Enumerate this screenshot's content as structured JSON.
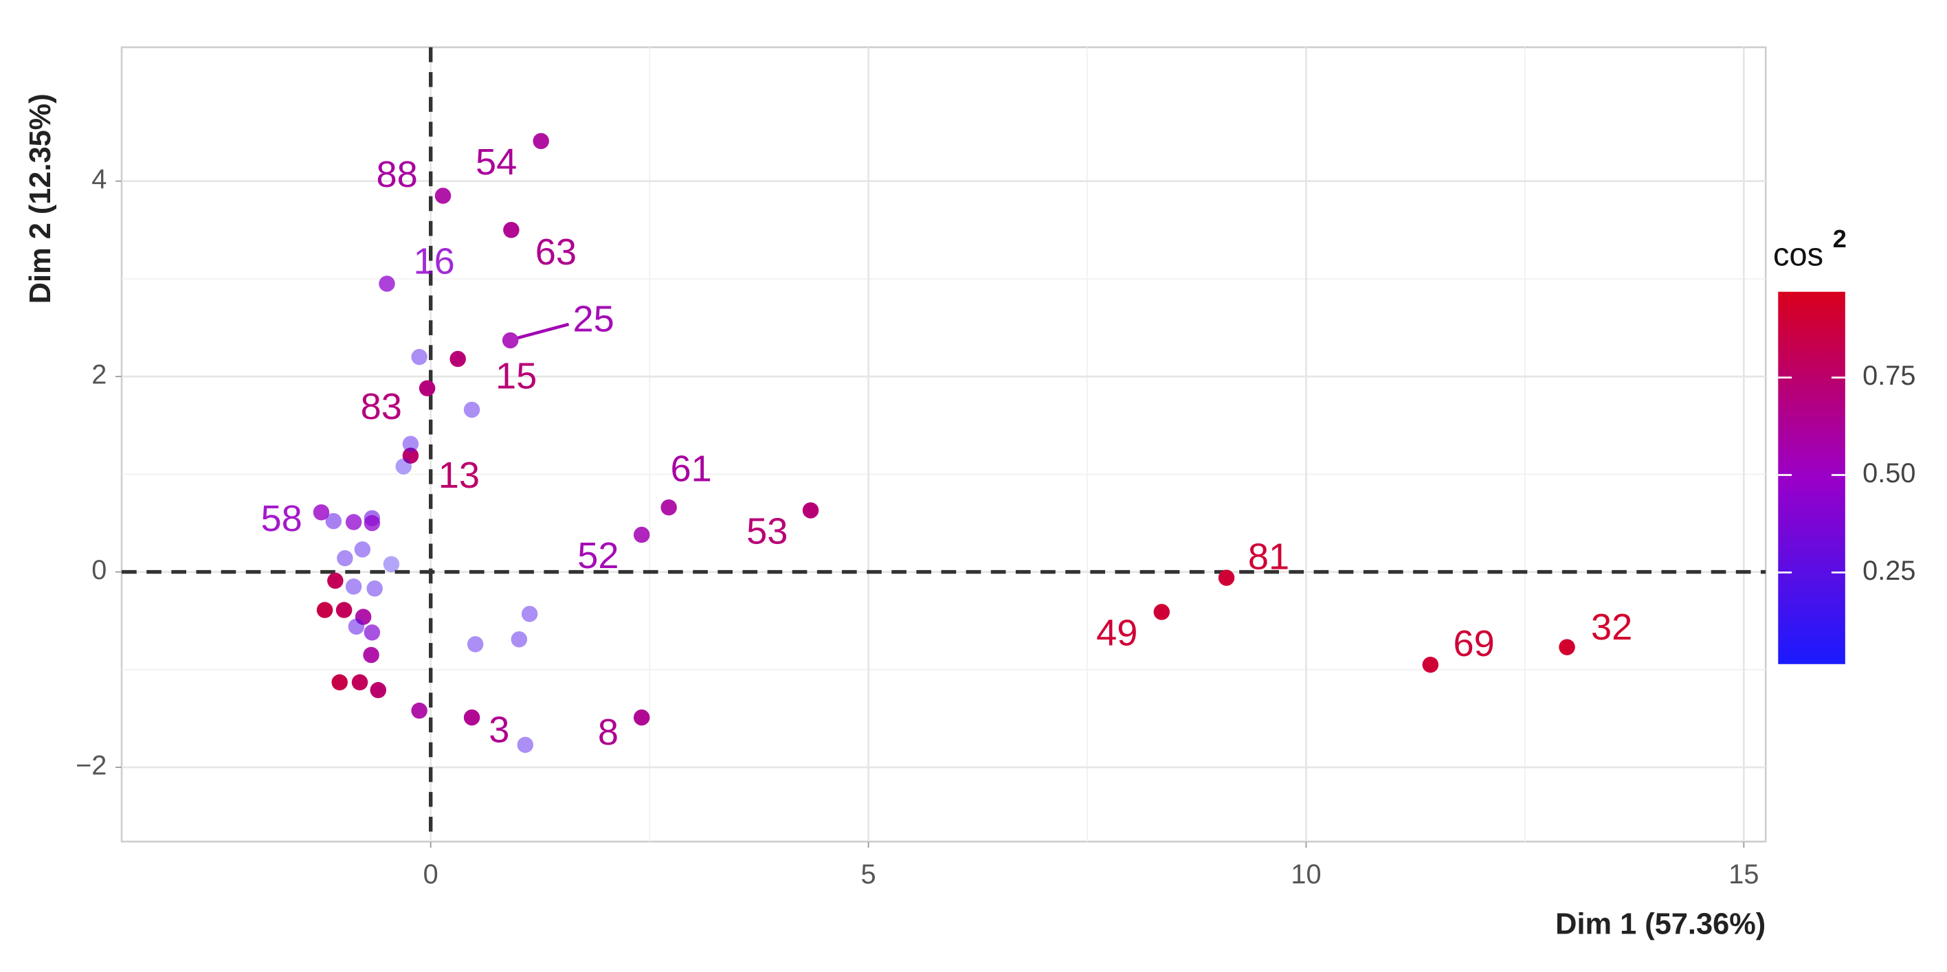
{
  "chart_data": {
    "type": "scatter",
    "x_label": "Dim 1 (57.36%)",
    "y_label": "Dim 2 (12.35%)",
    "xlim": [
      -3.53,
      15.25
    ],
    "ylim": [
      -2.76,
      5.37
    ],
    "xticks": [
      0,
      5,
      10,
      15
    ],
    "yticks": [
      {
        "value": -2,
        "label": "−2"
      },
      0,
      2,
      4
    ],
    "grid": true,
    "hline": 0,
    "vline": 0,
    "x": [
      1.26,
      0.14,
      0.92,
      -0.5,
      0.91,
      0.31,
      -0.04,
      -0.23,
      2.72,
      4.34,
      2.41,
      9.09,
      8.35,
      11.42,
      12.98,
      -1.25,
      0.47,
      2.41,
      -0.13,
      -0.13,
      0.47,
      -0.23,
      -0.31,
      1.08,
      1.01,
      1.13,
      0.51,
      -1.11,
      -0.88,
      -0.67,
      -0.67,
      -0.45,
      -0.98,
      -0.78,
      -1.09,
      -0.88,
      -0.64,
      -1.21,
      -0.99,
      -0.77,
      -0.85,
      -0.67,
      -0.68,
      -1.04,
      -0.81,
      -0.6
    ],
    "y": [
      4.41,
      3.85,
      3.5,
      2.95,
      2.37,
      2.18,
      1.88,
      1.19,
      0.66,
      0.63,
      0.38,
      -0.06,
      -0.41,
      -0.95,
      -0.77,
      0.61,
      -1.49,
      -1.49,
      -1.42,
      2.2,
      1.66,
      1.31,
      1.08,
      -1.77,
      -0.69,
      -0.43,
      -0.74,
      0.52,
      0.51,
      0.55,
      0.5,
      0.08,
      0.14,
      0.23,
      -0.09,
      -0.15,
      -0.17,
      -0.39,
      -0.39,
      -0.46,
      -0.56,
      -0.62,
      -0.85,
      -1.13,
      -1.13,
      -1.21
    ],
    "cos2": [
      0.62,
      0.6,
      0.65,
      0.45,
      0.55,
      0.72,
      0.7,
      0.75,
      0.6,
      0.72,
      0.55,
      0.9,
      0.9,
      0.9,
      0.92,
      0.5,
      0.65,
      0.65,
      0.6,
      0.2,
      0.2,
      0.2,
      0.15,
      0.2,
      0.2,
      0.2,
      0.2,
      0.25,
      0.45,
      0.3,
      0.45,
      0.12,
      0.2,
      0.2,
      0.8,
      0.2,
      0.2,
      0.85,
      0.8,
      0.6,
      0.25,
      0.4,
      0.6,
      0.85,
      0.8,
      0.75
    ],
    "labels": [
      "54",
      "88",
      "63",
      "16",
      "25",
      "15",
      "83",
      "13",
      "61",
      "53",
      "52",
      "81",
      "49",
      "69",
      "32",
      "58",
      "3",
      "8",
      null,
      null,
      null,
      null,
      null,
      null,
      null,
      null,
      null,
      null,
      null,
      null,
      null,
      null,
      null,
      null,
      null,
      null,
      null,
      null,
      null,
      null,
      null,
      null,
      null,
      null,
      null,
      null
    ],
    "colorbar": {
      "title": "cos",
      "title_superscript": "2",
      "lim": [
        0.015,
        0.97
      ],
      "ticks": [
        0.25,
        {
          "value": 0.5,
          "label": "0.50"
        },
        0.75
      ],
      "colors": [
        "#1a1aff",
        "#9a00c8",
        "#d8001c"
      ]
    }
  }
}
